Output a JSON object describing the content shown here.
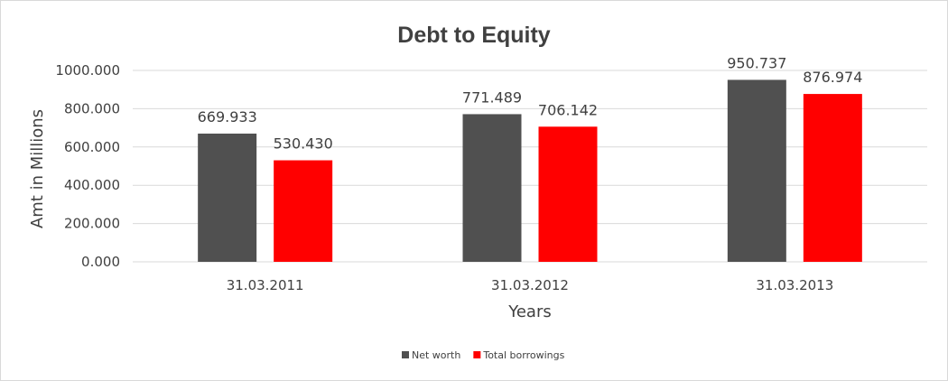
{
  "chart_data": {
    "type": "bar",
    "title": "Debt to Equity",
    "xlabel": "Years",
    "ylabel": "Amt in Millions",
    "categories": [
      "31.03.2011",
      "31.03.2012",
      "31.03.2013"
    ],
    "series": [
      {
        "name": "Net worth",
        "color": "#505050",
        "values": [
          669.933,
          771.489,
          950.737
        ]
      },
      {
        "name": "Total borrowings",
        "color": "#ff0000",
        "values": [
          530.43,
          706.142,
          876.974
        ]
      }
    ],
    "data_labels": [
      [
        "669.933",
        "771.489",
        "950.737"
      ],
      [
        "530.430",
        "706.142",
        "876.974"
      ]
    ],
    "ylim": [
      0,
      1000
    ],
    "yticks": [
      0,
      200,
      400,
      600,
      800,
      1000
    ],
    "ytick_labels": [
      "0.000",
      "200.000",
      "400.000",
      "600.000",
      "800.000",
      "1000.000"
    ],
    "grid": true,
    "gridline_color": "#d9d9d9",
    "legend_position": "bottom"
  }
}
